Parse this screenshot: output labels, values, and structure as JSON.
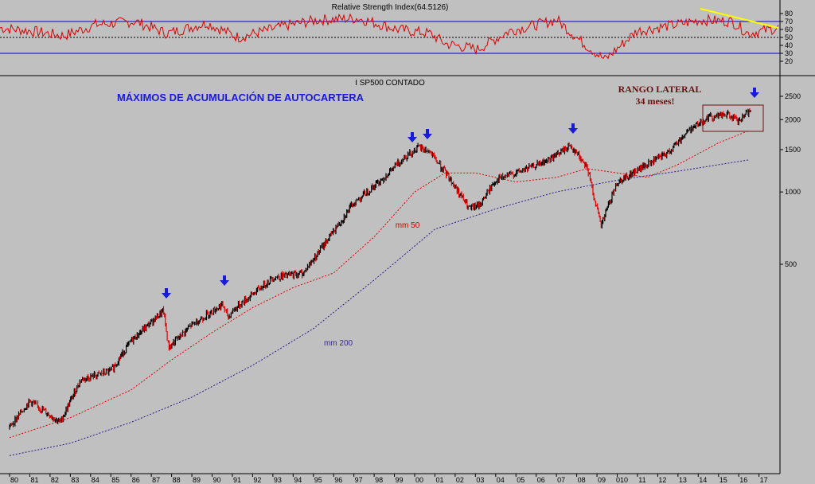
{
  "rsi_panel": {
    "title": "Relative Strength Index(64.5126)",
    "y_ticks": [
      "80",
      "70",
      "60",
      "50",
      "40",
      "30",
      "20"
    ],
    "levels": [
      70,
      50,
      30
    ],
    "colors": {
      "line": "#e00000",
      "levels": "#0000cc",
      "trend": "#ffff00"
    }
  },
  "price_panel": {
    "title": "I SP500 CONTADO",
    "y_ticks": [
      "2500",
      "2000",
      "1500",
      "1000",
      "500"
    ],
    "annotation_title": "MÁXIMOS DE ACUMULACIÓN DE AUTOCARTERA",
    "range_label_1": "RANGO LATERAL",
    "range_label_2": "34 meses!",
    "ma50_label": "mm 50",
    "ma200_label": "mm 200",
    "colors": {
      "up": "#000000",
      "down": "#e00000",
      "ma50": "#e00000",
      "ma200": "#2a1a8a",
      "arrow": "#1a1adc",
      "box": "#6b0f0f"
    }
  },
  "x_ticks": [
    "80",
    "81",
    "82",
    "83",
    "84",
    "85",
    "86",
    "87",
    "88",
    "89",
    "90",
    "91",
    "92",
    "93",
    "94",
    "95",
    "96",
    "97",
    "98",
    "99",
    "00",
    "01",
    "02",
    "03",
    "04",
    "05",
    "06",
    "07",
    "08",
    "09",
    "010",
    "11",
    "12",
    "13",
    "14",
    "15",
    "16",
    "17"
  ],
  "chart_data": {
    "type": "line",
    "title": "I SP500 CONTADO",
    "x_range": [
      "1980",
      "2017"
    ],
    "y_scale": "log",
    "series": [
      {
        "name": "I SP500 CONTADO",
        "x": [
          1980,
          1981,
          1982.5,
          1983.5,
          1985,
          1986,
          1987.6,
          1987.85,
          1989,
          1990.5,
          1990.8,
          1991,
          1993,
          1994.5,
          1995.5,
          1997,
          1998.5,
          1999.5,
          2000.2,
          2000.7,
          2001.7,
          2002.7,
          2003.2,
          2004,
          2005,
          2006.5,
          2007.7,
          2008.5,
          2009.2,
          2009.5,
          2010,
          2011.5,
          2012.5,
          2013.5,
          2014.5,
          2015.5,
          2016,
          2016.5
        ],
        "y": [
          105,
          135,
          110,
          165,
          180,
          240,
          320,
          225,
          280,
          340,
          300,
          320,
          440,
          460,
          600,
          900,
          1150,
          1400,
          1530,
          1480,
          1150,
          850,
          880,
          1120,
          1200,
          1340,
          1560,
          1280,
          720,
          850,
          1100,
          1300,
          1450,
          1800,
          2050,
          2100,
          1950,
          2170
        ]
      },
      {
        "name": "mm 50",
        "x": [
          1980,
          1983,
          1986,
          1988,
          1990,
          1992,
          1994,
          1996,
          1998,
          2000,
          2001.5,
          2003,
          2005,
          2007,
          2008.5,
          2010,
          2011.5,
          2013,
          2015,
          2016.5
        ],
        "y": [
          95,
          115,
          150,
          200,
          260,
          330,
          400,
          460,
          650,
          1000,
          1200,
          1200,
          1100,
          1150,
          1250,
          1200,
          1150,
          1300,
          1600,
          1800
        ]
      },
      {
        "name": "mm 200",
        "x": [
          1980,
          1983,
          1986,
          1989,
          1992,
          1995,
          1998,
          2001,
          2004,
          2007,
          2010,
          2013,
          2016.5
        ],
        "y": [
          80,
          90,
          110,
          140,
          190,
          270,
          430,
          700,
          850,
          1000,
          1120,
          1220,
          1360
        ]
      }
    ]
  }
}
